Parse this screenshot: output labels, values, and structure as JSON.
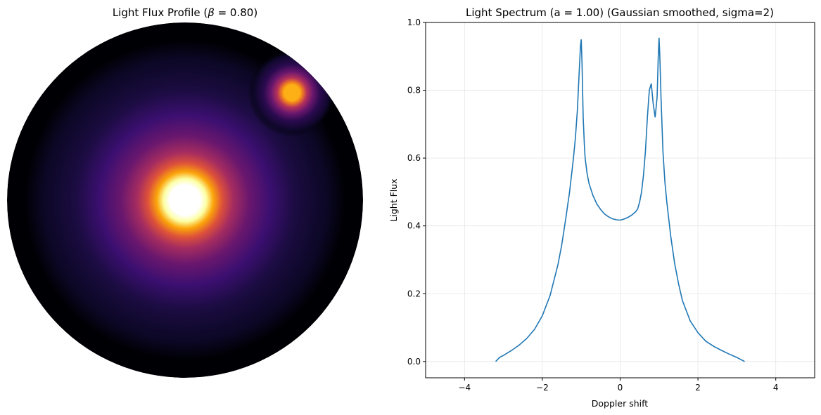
{
  "left_panel": {
    "title_prefix": "Light Flux Profile (",
    "title_symbol": "β",
    "title_suffix": " = 0.80)",
    "colormap": "inferno",
    "disk_background": "#000004",
    "secondary_spot_color": "#fcb015",
    "central_color": "#ffffff"
  },
  "chart_data": {
    "type": "line",
    "title": "Light Spectrum (a = 1.00) (Gaussian smoothed, sigma=2)",
    "xlabel": "Doppler shift",
    "ylabel": "Light Flux",
    "xlim": [
      -5.0,
      5.0
    ],
    "ylim": [
      -0.048,
      1.0
    ],
    "xticks": [
      -4,
      -2,
      0,
      2,
      4
    ],
    "xtick_labels": [
      "−4",
      "−2",
      "0",
      "2",
      "4"
    ],
    "yticks": [
      0.0,
      0.2,
      0.4,
      0.6,
      0.8,
      1.0
    ],
    "ytick_labels": [
      "0.0",
      "0.2",
      "0.4",
      "0.6",
      "0.8",
      "1.0"
    ],
    "grid": true,
    "line_color": "#1f77b4",
    "series": [
      {
        "x": [
          -3.2,
          -3.1,
          -3.0,
          -2.8,
          -2.6,
          -2.4,
          -2.2,
          -2.0,
          -1.8,
          -1.6,
          -1.5,
          -1.4,
          -1.3,
          -1.2,
          -1.15,
          -1.1,
          -1.05,
          -1.02,
          -1.0,
          -0.98,
          -0.95,
          -0.92,
          -0.9,
          -0.85,
          -0.8,
          -0.7,
          -0.6,
          -0.5,
          -0.4,
          -0.3,
          -0.2,
          -0.1,
          0.0,
          0.1,
          0.2,
          0.3,
          0.4,
          0.45,
          0.5,
          0.55,
          0.6,
          0.65,
          0.7,
          0.75,
          0.8,
          0.85,
          0.9,
          0.95,
          0.98,
          1.0,
          1.02,
          1.05,
          1.1,
          1.15,
          1.2,
          1.3,
          1.4,
          1.5,
          1.6,
          1.8,
          2.0,
          2.2,
          2.4,
          2.6,
          2.8,
          3.0,
          3.1,
          3.2
        ],
        "y": [
          0.0,
          0.012,
          0.018,
          0.032,
          0.048,
          0.068,
          0.095,
          0.135,
          0.195,
          0.285,
          0.345,
          0.42,
          0.5,
          0.6,
          0.66,
          0.74,
          0.86,
          0.93,
          0.95,
          0.88,
          0.72,
          0.64,
          0.6,
          0.555,
          0.525,
          0.49,
          0.465,
          0.448,
          0.435,
          0.427,
          0.421,
          0.418,
          0.417,
          0.42,
          0.425,
          0.432,
          0.442,
          0.45,
          0.47,
          0.5,
          0.55,
          0.62,
          0.72,
          0.8,
          0.82,
          0.76,
          0.72,
          0.78,
          0.9,
          0.955,
          0.9,
          0.78,
          0.62,
          0.53,
          0.47,
          0.37,
          0.29,
          0.23,
          0.18,
          0.12,
          0.085,
          0.06,
          0.045,
          0.033,
          0.022,
          0.012,
          0.006,
          0.0
        ]
      }
    ]
  }
}
